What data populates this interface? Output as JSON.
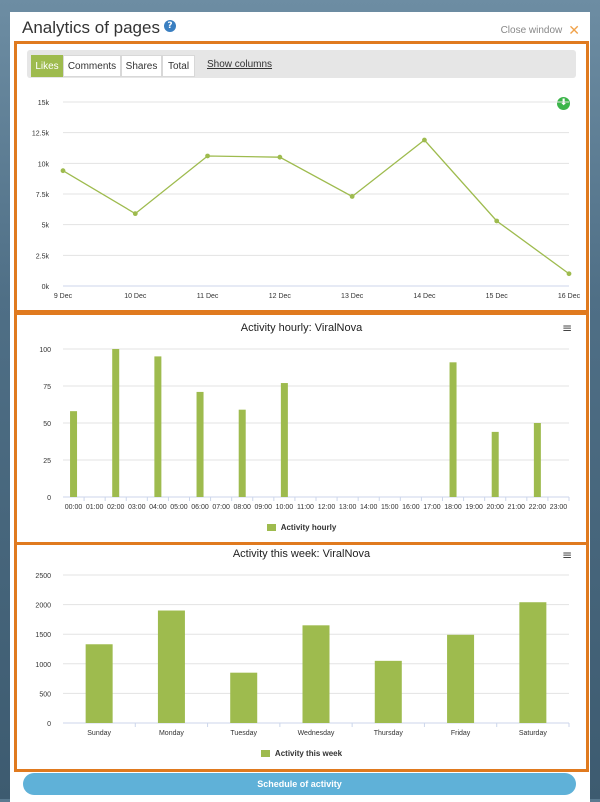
{
  "modal": {
    "title": "Analytics of pages",
    "help_icon": "?",
    "close_label": "Close window",
    "close_icon": "✕"
  },
  "tabs": [
    {
      "label": "Likes",
      "active": true
    },
    {
      "label": "Comments",
      "active": false
    },
    {
      "label": "Shares",
      "active": false
    },
    {
      "label": "Total",
      "active": false
    }
  ],
  "show_columns_label": "Show columns",
  "download_icon": "⬇",
  "menu_icon": "≡",
  "schedule_button_label": "Schedule of activity",
  "colors": {
    "accent": "#9ebb4e",
    "border": "#e07a1f",
    "button": "#5fb1d8"
  },
  "chart_data": [
    {
      "type": "line",
      "title": "",
      "x": [
        "9 Dec",
        "10 Dec",
        "11 Dec",
        "12 Dec",
        "13 Dec",
        "14 Dec",
        "15 Dec",
        "16 Dec"
      ],
      "values": [
        9400,
        5900,
        10600,
        10500,
        7300,
        11900,
        5300,
        1000
      ],
      "yticks": [
        "0k",
        "2.5k",
        "5k",
        "7.5k",
        "10k",
        "12.5k",
        "15k"
      ],
      "ylim": [
        0,
        15000
      ],
      "grid": true
    },
    {
      "type": "bar",
      "title": "Activity hourly: ViralNova",
      "categories": [
        "00:00",
        "01:00",
        "02:00",
        "03:00",
        "04:00",
        "05:00",
        "06:00",
        "07:00",
        "08:00",
        "09:00",
        "10:00",
        "11:00",
        "12:00",
        "13:00",
        "14:00",
        "15:00",
        "16:00",
        "17:00",
        "18:00",
        "19:00",
        "20:00",
        "21:00",
        "22:00",
        "23:00"
      ],
      "series": [
        {
          "name": "Activity hourly",
          "values": [
            58,
            0,
            100,
            0,
            95,
            0,
            71,
            0,
            59,
            0,
            77,
            0,
            0,
            0,
            0,
            0,
            0,
            0,
            91,
            0,
            44,
            0,
            50,
            0
          ]
        }
      ],
      "yticks": [
        "0",
        "25",
        "50",
        "75",
        "100"
      ],
      "ylim": [
        0,
        100
      ],
      "grid": true,
      "legend": "bottom"
    },
    {
      "type": "bar",
      "title": "Activity this week: ViralNova",
      "categories": [
        "Sunday",
        "Monday",
        "Tuesday",
        "Wednesday",
        "Thursday",
        "Friday",
        "Saturday"
      ],
      "series": [
        {
          "name": "Activity this week",
          "values": [
            1330,
            1900,
            850,
            1650,
            1050,
            1490,
            2040
          ]
        }
      ],
      "yticks": [
        "0",
        "500",
        "1000",
        "1500",
        "2000",
        "2500"
      ],
      "ylim": [
        0,
        2500
      ],
      "grid": true,
      "legend": "bottom"
    }
  ]
}
